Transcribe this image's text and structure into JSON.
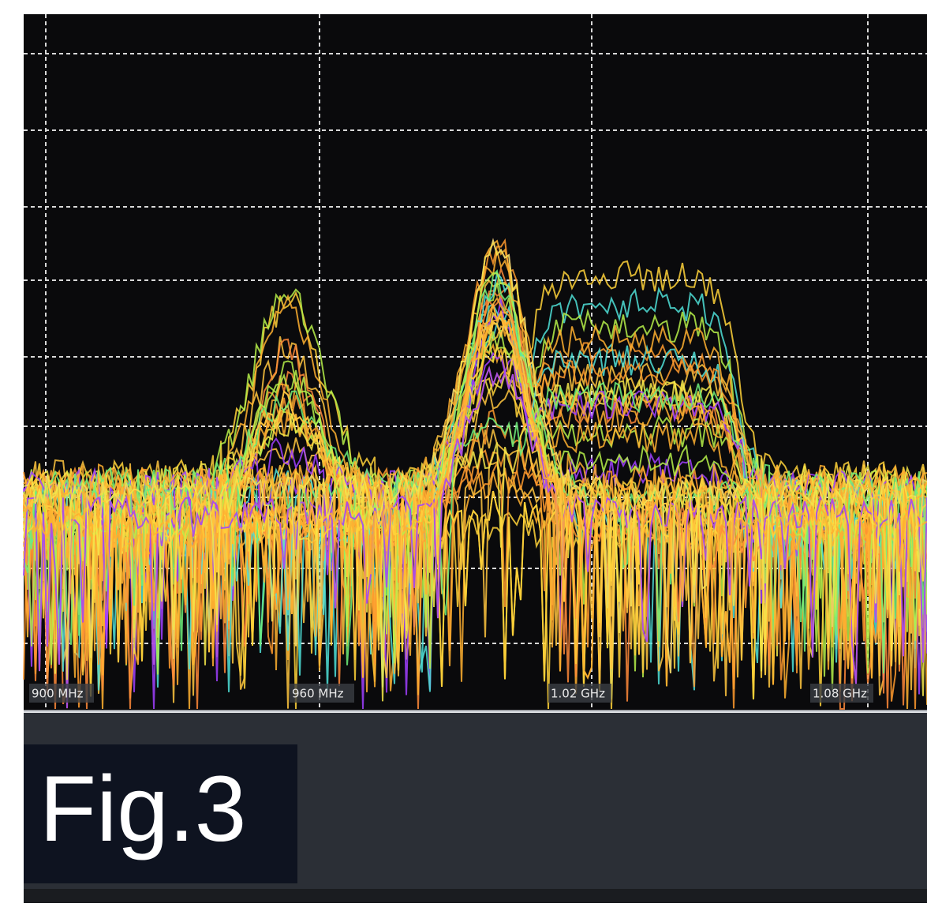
{
  "frequency_labels": [
    "900 MHz",
    "960 MHz",
    "1.02 GHz",
    "1.08 GHz"
  ],
  "figure_label": "Fig.3"
}
